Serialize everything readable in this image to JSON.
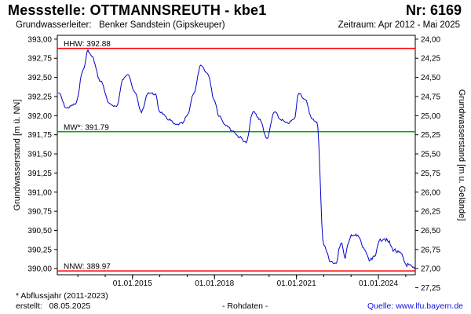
{
  "header": {
    "title": "Messstelle: OTTMANNSREUTH - kbe1",
    "station_nr": "Nr: 6169",
    "aquifer_label": "Grundwasserleiter:",
    "aquifer_value": "Benker Sandstein (Gipskeuper)",
    "period": "Zeitraum: Apr 2012 - Mai 2025"
  },
  "footer": {
    "footnote": "* Abflussjahr (2011-2023)",
    "created_label": "erstellt:",
    "created_date": "08.05.2025",
    "rawdata": "- Rohdaten -",
    "source": "Quelle: www.lfu.bayern.de"
  },
  "chart_data": {
    "type": "line",
    "xlabel": "",
    "ylabel": "Grundwasserstand [m ü. NN]",
    "ylabel_right": "Grundwasserstand [m u. Gelände]",
    "xlim": [
      "2012-04-01",
      "2025-05-08"
    ],
    "ylim": [
      389.92,
      393.05
    ],
    "x_tick_labels": [
      "01.01.2015",
      "01.01.2018",
      "01.01.2021",
      "01.01.2024"
    ],
    "y_tick_labels": [
      "390,00",
      "390,25",
      "390,50",
      "390,75",
      "391,00",
      "391,25",
      "391,50",
      "391,75",
      "392,00",
      "392,25",
      "392,50",
      "392,75",
      "393,00"
    ],
    "y2_tick_labels": [
      "24,00",
      "24,25",
      "24,50",
      "24,75",
      "25,00",
      "25,25",
      "25,50",
      "25,75",
      "26,00",
      "26,25",
      "26,50",
      "26,75",
      "27,00",
      "27,25"
    ],
    "grid": false,
    "line_color": "#0000cc",
    "reference_lines": [
      {
        "label": "HHW: 392.88",
        "value": 392.88,
        "color": "#ff0000"
      },
      {
        "label": "MW*: 391.79",
        "value": 391.79,
        "color": "#00aa00"
      },
      {
        "label": "NNW: 389.97",
        "value": 389.97,
        "color": "#ff0000"
      }
    ],
    "series": [
      {
        "x": [
          "2012-04-15",
          "2012-08-01",
          "2012-12-01",
          "2013-03-15",
          "2013-05-15",
          "2013-07-01",
          "2013-11-01",
          "2014-03-01",
          "2014-06-01",
          "2014-09-01",
          "2014-11-01",
          "2015-02-01",
          "2015-05-01",
          "2015-08-01",
          "2015-11-01",
          "2016-01-01",
          "2016-05-01",
          "2016-08-01",
          "2016-11-01",
          "2017-01-01",
          "2017-04-01",
          "2017-07-01",
          "2017-10-01",
          "2018-01-01",
          "2018-03-01",
          "2018-06-01",
          "2018-09-01",
          "2018-12-01",
          "2019-03-01",
          "2019-06-01",
          "2019-09-01",
          "2019-12-01",
          "2020-03-15",
          "2020-06-01",
          "2020-09-01",
          "2020-12-01",
          "2021-02-01",
          "2021-05-01",
          "2021-08-01",
          "2021-10-01",
          "2022-01-01",
          "2022-04-01",
          "2022-06-15",
          "2022-08-01",
          "2022-09-01",
          "2022-10-01",
          "2022-10-15",
          "2022-11-15",
          "2023-01-15",
          "2023-04-01",
          "2023-07-01",
          "2023-09-01",
          "2023-11-15",
          "2024-01-01",
          "2024-03-15",
          "2024-05-15",
          "2024-07-15",
          "2024-10-15",
          "2025-01-15",
          "2025-05-01"
        ],
        "y": [
          392.3,
          392.1,
          392.15,
          392.6,
          392.85,
          392.78,
          392.45,
          392.15,
          392.12,
          392.48,
          392.55,
          392.3,
          392.05,
          392.3,
          392.28,
          392.05,
          391.95,
          391.88,
          391.9,
          392.0,
          392.3,
          392.65,
          392.55,
          392.2,
          392.0,
          391.88,
          391.8,
          391.72,
          391.65,
          392.05,
          391.95,
          391.7,
          392.05,
          391.95,
          391.9,
          391.95,
          392.3,
          392.2,
          391.95,
          391.92,
          390.3,
          390.1,
          390.05,
          390.3,
          390.35,
          390.15,
          390.15,
          390.3,
          390.45,
          390.42,
          390.25,
          390.1,
          390.15,
          390.35,
          390.4,
          390.35,
          390.25,
          390.2,
          390.05,
          390.0
        ]
      }
    ]
  }
}
